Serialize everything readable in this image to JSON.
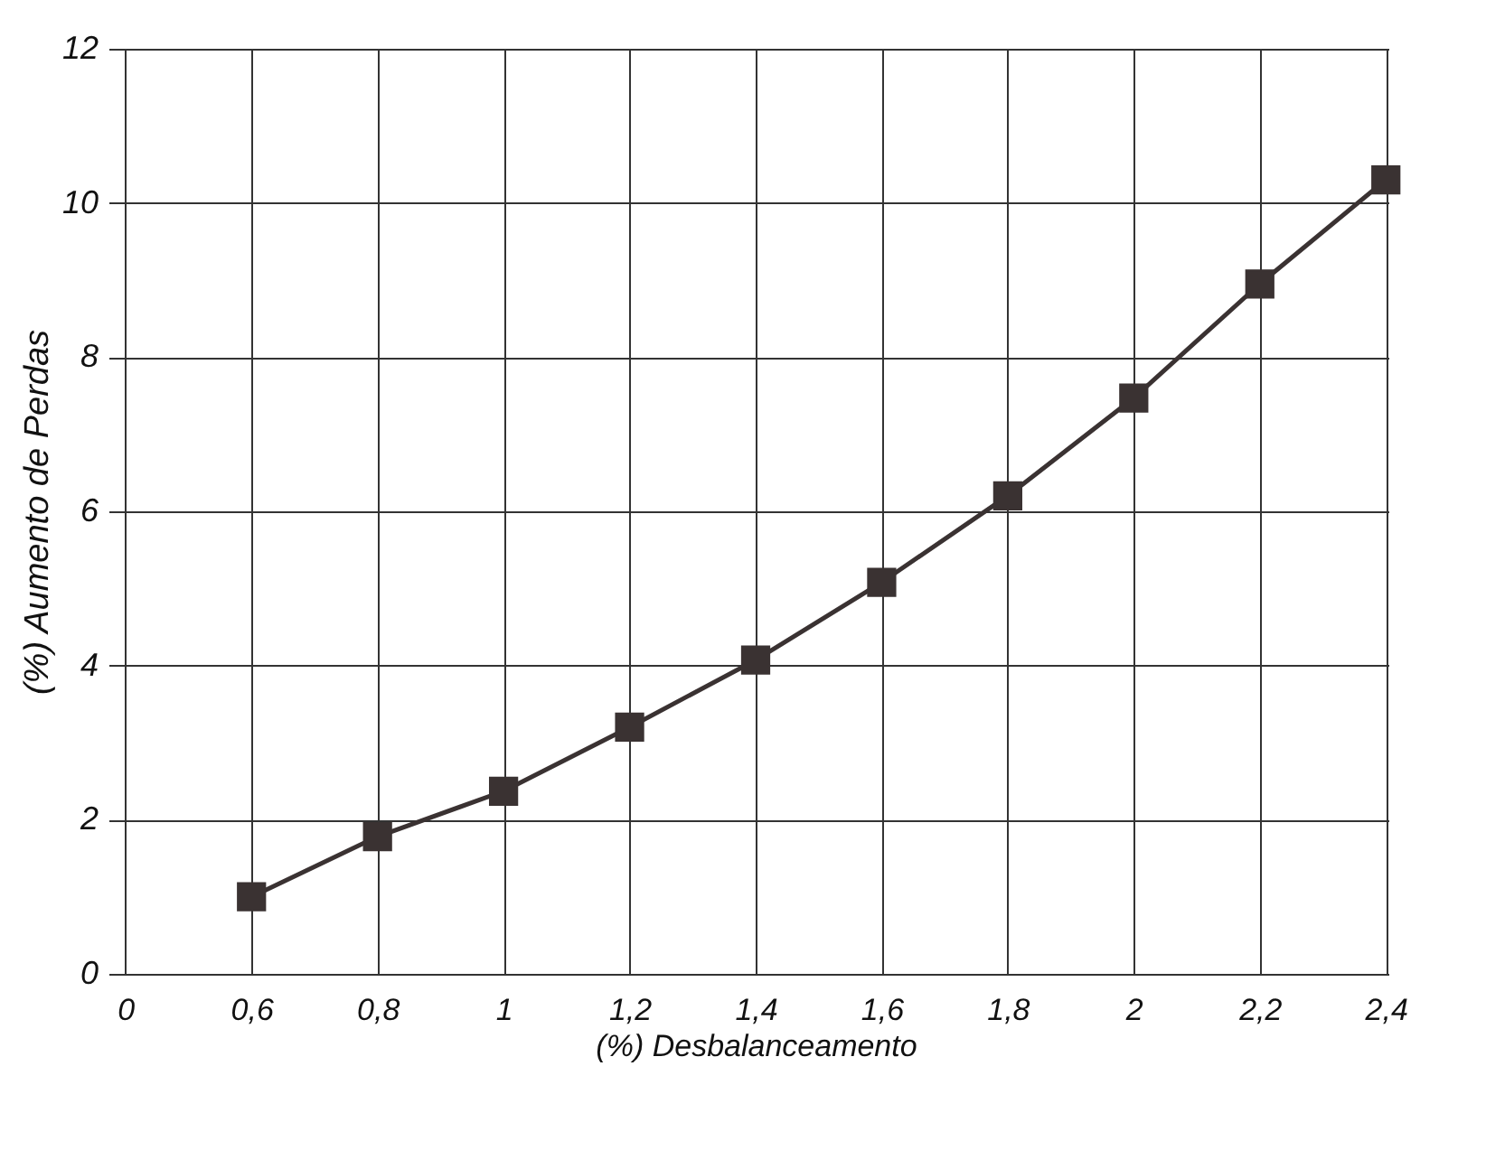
{
  "chart_data": {
    "type": "line",
    "xlabel": "(%) Desbalanceamento",
    "ylabel": "(%) Aumento de Perdas",
    "categories": [
      "0",
      "0,6",
      "0,8",
      "1",
      "1,2",
      "1,4",
      "1,6",
      "1,8",
      "2",
      "2,2",
      "2,4"
    ],
    "series": [
      {
        "color": "#3a3232",
        "values": [
          null,
          1.0,
          1.78,
          2.37,
          3.2,
          4.07,
          5.08,
          6.2,
          7.47,
          8.95,
          10.3
        ]
      }
    ],
    "ylim": [
      0,
      12
    ],
    "yticks": [
      0,
      2,
      4,
      6,
      8,
      10,
      12
    ],
    "grid": true,
    "marker": "square",
    "line_style": "solid"
  }
}
